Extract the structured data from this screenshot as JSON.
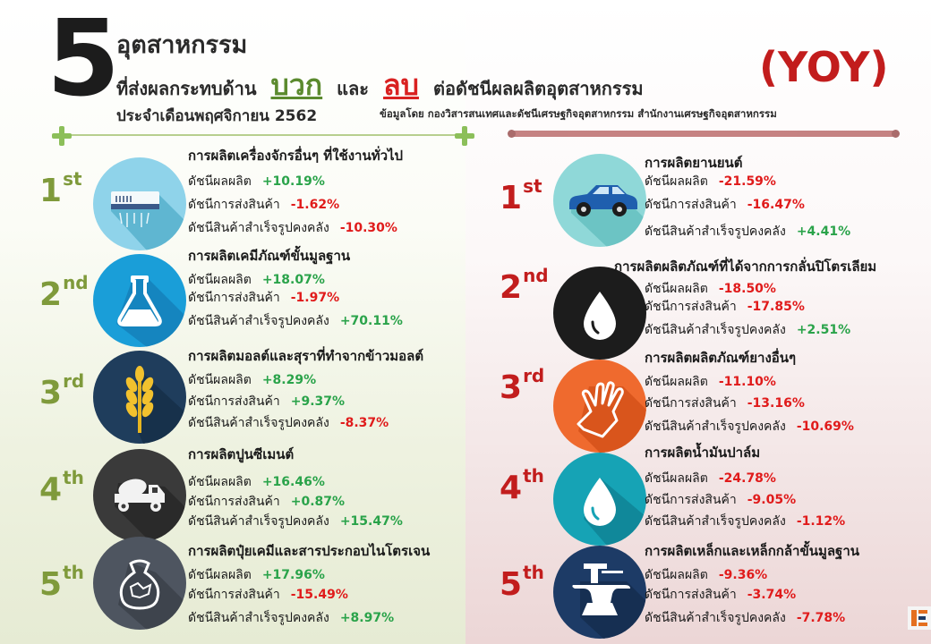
{
  "header": {
    "big_number": "5",
    "line1": "อุตสาหกรรม",
    "line2_a": "ที่ส่งผลกระทบด้าน",
    "positive_word": "บวก",
    "line2_b": "และ",
    "negative_word": "ลบ",
    "line2_c": "ต่อดัชนีผลผลิตอุตสาหกรรม",
    "yoy": "(YOY)",
    "line3": "ประจำเดือนพฤศจิกายน  2562",
    "source": "ข้อมูลโดย กองวิสารสนเทศและดัชนีเศรษฐกิจอุตสาหกรรม สำนักงานเศรษฐกิจอุตสาหกรรม"
  },
  "metric_labels": {
    "production": "ดัชนีผลผลิต",
    "shipment": "ดัชนีการส่งสินค้า",
    "inventory": "ดัชนีสินค้าสำเร็จรูปคงคลัง"
  },
  "positive": [
    {
      "rank": "1",
      "suffix": "st",
      "icon": "air-conditioner-icon",
      "title": "การผลิตเครื่องจักรอื่นๆ ที่ใช้งานทั่วไป",
      "production": "+10.19%",
      "shipment": "-1.62%",
      "inventory": "-10.30%"
    },
    {
      "rank": "2",
      "suffix": "nd",
      "icon": "flask-icon",
      "title": "การผลิตเคมีภัณฑ์ขั้นมูลฐาน",
      "production": "+18.07%",
      "shipment": "-1.97%",
      "inventory": "+70.11%"
    },
    {
      "rank": "3",
      "suffix": "rd",
      "icon": "wheat-icon",
      "title": "การผลิตมอลต์และสุราที่ทำจากข้าวมอลต์",
      "production": "+8.29%",
      "shipment": "+9.37%",
      "inventory": "-8.37%"
    },
    {
      "rank": "4",
      "suffix": "th",
      "icon": "cement-truck-icon",
      "title": "การผลิตปูนซีเมนต์",
      "production": "+16.46%",
      "shipment": "+0.87%",
      "inventory": "+15.47%"
    },
    {
      "rank": "5",
      "suffix": "th",
      "icon": "fertilizer-sack-icon",
      "title": "การผลิตปุ๋ยเคมีและสารประกอบไนโตรเจน",
      "production": "+17.96%",
      "shipment": "-15.49%",
      "inventory": "+8.97%"
    }
  ],
  "negative": [
    {
      "rank": "1",
      "suffix": "st",
      "icon": "car-icon",
      "title": "การผลิตยานยนต์",
      "production": "-21.59%",
      "shipment": "-16.47%",
      "inventory": "+4.41%"
    },
    {
      "rank": "2",
      "suffix": "nd",
      "icon": "oil-drop-icon",
      "title": "การผลิตผลิตภัณฑ์ที่ได้จากการกลั่นปิโตรเลียม",
      "production": "-18.50%",
      "shipment": "-17.85%",
      "inventory": "+2.51%"
    },
    {
      "rank": "3",
      "suffix": "rd",
      "icon": "rubber-glove-icon",
      "title": "การผลิตผลิตภัณฑ์ยางอื่นๆ",
      "production": "-11.10%",
      "shipment": "-13.16%",
      "inventory": "-10.69%"
    },
    {
      "rank": "4",
      "suffix": "th",
      "icon": "palm-oil-drop-icon",
      "title": "การผลิตน้ำมันปาล์ม",
      "production": "-24.78%",
      "shipment": "-9.05%",
      "inventory": "-1.12%"
    },
    {
      "rank": "5",
      "suffix": "th",
      "icon": "anvil-icon",
      "title": "การผลิตเหล็กและเหล็กกล้าขั้นมูลฐาน",
      "production": "-9.36%",
      "shipment": "-3.74%",
      "inventory": "-7.78%"
    }
  ],
  "colors": {
    "positive_accent": "#5b8a2e",
    "negative_accent": "#d92121",
    "positive_value": "#2aa34a",
    "negative_value": "#e01b1b"
  }
}
